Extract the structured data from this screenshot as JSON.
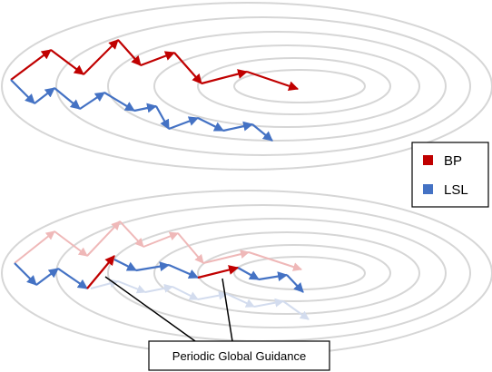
{
  "legend": {
    "items": [
      {
        "label": "BP",
        "color": "#c00000"
      },
      {
        "label": "LSL",
        "color": "#4472c4"
      }
    ]
  },
  "callout": {
    "label": "Periodic Global Guidance"
  },
  "colors": {
    "bp": "#c00000",
    "lsl": "#4472c4",
    "bp_faded": "#efb8b8",
    "lsl_faded": "#d3dcee",
    "contour": "#d6d6d6"
  }
}
